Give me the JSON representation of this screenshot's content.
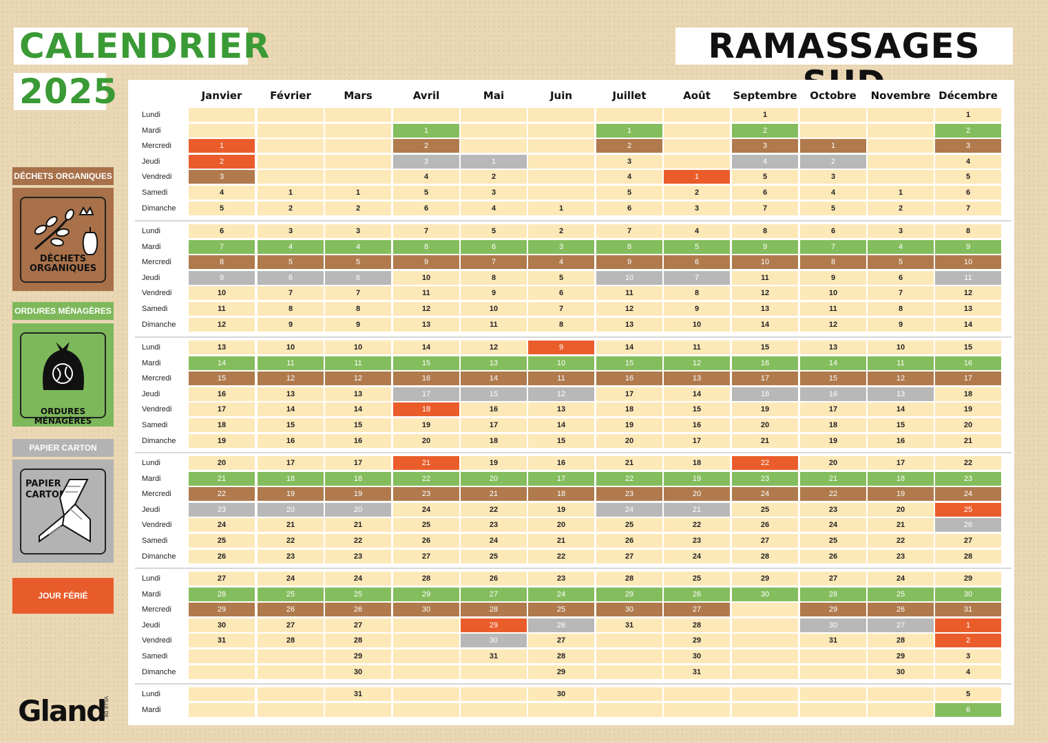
{
  "header": {
    "title_line1": "CALENDRIER",
    "title_line2": "2025",
    "subtitle": "RAMASSAGES SUD"
  },
  "legend": [
    {
      "key": "O",
      "label": "DÉCHETS ORGANIQUES",
      "caption": [
        "DÉCHETS",
        "ORGANIQUES"
      ],
      "color": "#a8714a",
      "icon": "organic-waste-icon"
    },
    {
      "key": "M",
      "label": "ORDURES MÉNAGÈRES",
      "caption": [
        "ORDURES MÉNAGÈRES"
      ],
      "color": "#7db85a",
      "icon": "garbage-bag-icon"
    },
    {
      "key": "P",
      "label": "PAPIER CARTON",
      "caption": [
        "PAPIER",
        "CARTON"
      ],
      "color": "#b3b3b3",
      "icon": "paper-carton-icon"
    },
    {
      "key": "F",
      "label": "JOUR FÉRIÉ",
      "color": "#e85c2c"
    }
  ],
  "colors": {
    "cell_default": "#fde8b8",
    "O": "#b07a4d",
    "M": "#84bd5d",
    "P": "#b8b8b8",
    "F": "#ea5d2b",
    "accent_green": "#3a9a35"
  },
  "months": [
    "Janvier",
    "Février",
    "Mars",
    "Avril",
    "Mai",
    "Juin",
    "Juillet",
    "Août",
    "Septembre",
    "Octobre",
    "Novembre",
    "Décembre"
  ],
  "weekdays": [
    "Lundi",
    "Mardi",
    "Mercredi",
    "Jeudi",
    "Vendredi",
    "Samedi",
    "Dimanche"
  ],
  "blocks": [
    {
      "rows": 7,
      "cells": [
        [
          "",
          "",
          "",
          "",
          "",
          "",
          "",
          "",
          "1",
          "",
          "",
          "1"
        ],
        [
          "",
          "",
          "",
          "1M",
          "",
          "",
          "1M",
          "",
          "2M",
          "",
          "",
          "2M"
        ],
        [
          "1F",
          "",
          "",
          "2O",
          "",
          "",
          "2O",
          "",
          "3O",
          "1O",
          "",
          "3O"
        ],
        [
          "2F",
          "",
          "",
          "3P",
          "1P",
          "",
          "3",
          "",
          "4P",
          "2P",
          "",
          "4"
        ],
        [
          "3O",
          "",
          "",
          "4",
          "2",
          "",
          "4",
          "1F",
          "5",
          "3",
          "",
          "5"
        ],
        [
          "4",
          "1",
          "1",
          "5",
          "3",
          "",
          "5",
          "2",
          "6",
          "4",
          "1",
          "6"
        ],
        [
          "5",
          "2",
          "2",
          "6",
          "4",
          "1",
          "6",
          "3",
          "7",
          "5",
          "2",
          "7"
        ]
      ]
    },
    {
      "rows": 7,
      "cells": [
        [
          "6",
          "3",
          "3",
          "7",
          "5",
          "2",
          "7",
          "4",
          "8",
          "6",
          "3",
          "8"
        ],
        [
          "7M",
          "4M",
          "4M",
          "8M",
          "6M",
          "3M",
          "8M",
          "5M",
          "9M",
          "7M",
          "4M",
          "9M"
        ],
        [
          "8O",
          "5O",
          "5O",
          "9O",
          "7O",
          "4O",
          "9O",
          "6O",
          "10O",
          "8O",
          "5O",
          "10O"
        ],
        [
          "9P",
          "6P",
          "6P",
          "10",
          "8",
          "5",
          "10P",
          "7P",
          "11",
          "9",
          "6",
          "11P"
        ],
        [
          "10",
          "7",
          "7",
          "11",
          "9",
          "6",
          "11",
          "8",
          "12",
          "10",
          "7",
          "12"
        ],
        [
          "11",
          "8",
          "8",
          "12",
          "10",
          "7",
          "12",
          "9",
          "13",
          "11",
          "8",
          "13"
        ],
        [
          "12",
          "9",
          "9",
          "13",
          "11",
          "8",
          "13",
          "10",
          "14",
          "12",
          "9",
          "14"
        ]
      ]
    },
    {
      "rows": 7,
      "cells": [
        [
          "13",
          "10",
          "10",
          "14",
          "12",
          "9F",
          "14",
          "11",
          "15",
          "13",
          "10",
          "15"
        ],
        [
          "14M",
          "11M",
          "11M",
          "15M",
          "13M",
          "10M",
          "15M",
          "12M",
          "16M",
          "14M",
          "11M",
          "16M"
        ],
        [
          "15O",
          "12O",
          "12O",
          "16O",
          "14O",
          "11O",
          "16O",
          "13O",
          "17O",
          "15O",
          "12O",
          "17O"
        ],
        [
          "16",
          "13",
          "13",
          "17P",
          "15P",
          "12P",
          "17",
          "14",
          "18P",
          "16P",
          "13P",
          "18"
        ],
        [
          "17",
          "14",
          "14",
          "18F",
          "16",
          "13",
          "18",
          "15",
          "19",
          "17",
          "14",
          "19"
        ],
        [
          "18",
          "15",
          "15",
          "19",
          "17",
          "14",
          "19",
          "16",
          "20",
          "18",
          "15",
          "20"
        ],
        [
          "19",
          "16",
          "16",
          "20",
          "18",
          "15",
          "20",
          "17",
          "21",
          "19",
          "16",
          "21"
        ]
      ]
    },
    {
      "rows": 7,
      "cells": [
        [
          "20",
          "17",
          "17",
          "21F",
          "19",
          "16",
          "21",
          "18",
          "22F",
          "20",
          "17",
          "22"
        ],
        [
          "21M",
          "18M",
          "18M",
          "22M",
          "20M",
          "17M",
          "22M",
          "19M",
          "23M",
          "21M",
          "18M",
          "23M"
        ],
        [
          "22O",
          "19O",
          "19O",
          "23O",
          "21O",
          "18O",
          "23O",
          "20O",
          "24O",
          "22O",
          "19O",
          "24O"
        ],
        [
          "23P",
          "20P",
          "20P",
          "24",
          "22",
          "19",
          "24P",
          "21P",
          "25",
          "23",
          "20",
          "25F"
        ],
        [
          "24",
          "21",
          "21",
          "25",
          "23",
          "20",
          "25",
          "22",
          "26",
          "24",
          "21",
          "26P"
        ],
        [
          "25",
          "22",
          "22",
          "26",
          "24",
          "21",
          "26",
          "23",
          "27",
          "25",
          "22",
          "27"
        ],
        [
          "26",
          "23",
          "23",
          "27",
          "25",
          "22",
          "27",
          "24",
          "28",
          "26",
          "23",
          "28"
        ]
      ]
    },
    {
      "rows": 7,
      "cells": [
        [
          "27",
          "24",
          "24",
          "28",
          "26",
          "23",
          "28",
          "25",
          "29",
          "27",
          "24",
          "29"
        ],
        [
          "28M",
          "25M",
          "25M",
          "29M",
          "27M",
          "24M",
          "29M",
          "26M",
          "30M",
          "28M",
          "25M",
          "30M"
        ],
        [
          "29O",
          "26O",
          "26O",
          "30O",
          "28O",
          "25O",
          "30O",
          "27O",
          "",
          "29O",
          "26O",
          "31O"
        ],
        [
          "30",
          "27",
          "27",
          "",
          "29F",
          "26P",
          "31",
          "28",
          "",
          "30P",
          "27P",
          "1F"
        ],
        [
          "31",
          "28",
          "28",
          "",
          "30P",
          "27",
          "",
          "29",
          "",
          "31",
          "28",
          "2F"
        ],
        [
          "",
          "",
          "29",
          "",
          "31",
          "28",
          "",
          "30",
          "",
          "",
          "29",
          "3"
        ],
        [
          "",
          "",
          "30",
          "",
          "",
          "29",
          "",
          "31",
          "",
          "",
          "30",
          "4"
        ]
      ]
    },
    {
      "rows": 2,
      "cells": [
        [
          "",
          "",
          "31",
          "",
          "",
          "30",
          "",
          "",
          "",
          "",
          "",
          "5"
        ],
        [
          "",
          "",
          "",
          "",
          "",
          "",
          "",
          "",
          "",
          "",
          "",
          "6M"
        ]
      ]
    }
  ],
  "logo": {
    "text": "Gland",
    "small": "VILLE DE"
  }
}
